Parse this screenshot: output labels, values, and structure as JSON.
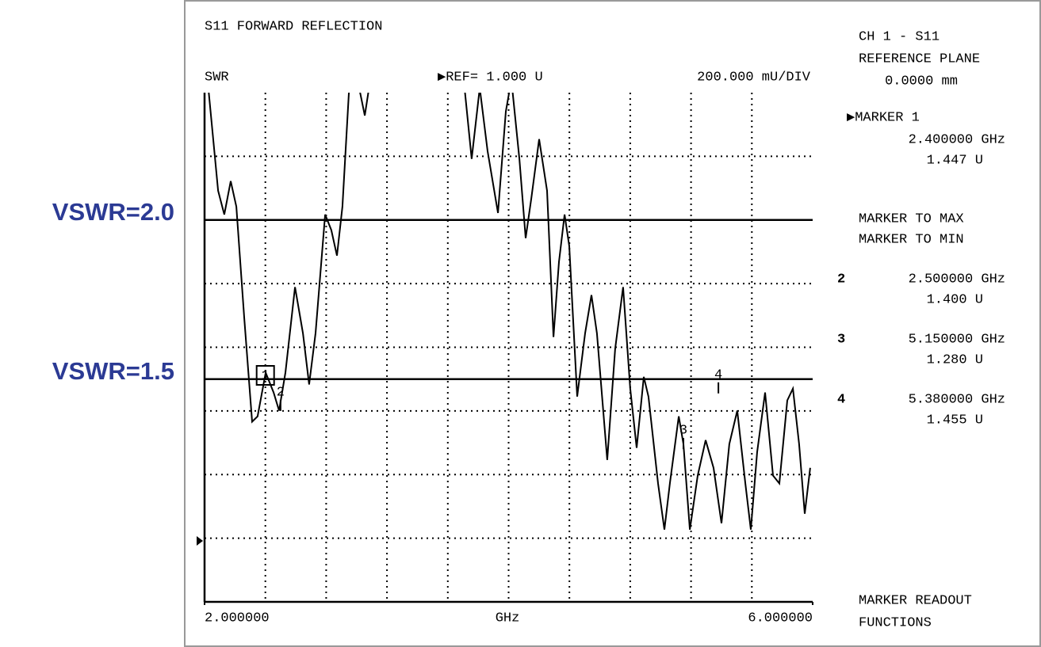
{
  "chart_data": {
    "type": "line",
    "title": "S11 FORWARD REFLECTION",
    "ylabel": "SWR",
    "ref_text": "▶REF= 1.000 U",
    "scale_text": "200.000 mU/DIV",
    "xlabel": "GHz",
    "xlim": [
      2,
      6
    ],
    "ylim": [
      0.8,
      2.4
    ],
    "xticks": [
      {
        "value": 2,
        "label": "2.000000"
      },
      {
        "value": 6,
        "label": "6.000000"
      }
    ],
    "xgrid": [
      2.4,
      2.8,
      3.2,
      3.6,
      4.0,
      4.4,
      4.8,
      5.2,
      5.6
    ],
    "ygrid": [
      1.0,
      1.2,
      1.4,
      1.6,
      1.8,
      2.2
    ],
    "reference_lines": [
      {
        "value": 2.0,
        "label": "VSWR=2.0"
      },
      {
        "value": 1.5,
        "label": "VSWR=1.5"
      }
    ],
    "color": "#000000",
    "x": [
      2.02,
      2.089,
      2.13,
      2.172,
      2.209,
      2.261,
      2.313,
      2.349,
      2.402,
      2.454,
      2.49,
      2.532,
      2.595,
      2.647,
      2.688,
      2.73,
      2.793,
      2.834,
      2.871,
      2.907,
      2.949,
      2.986,
      3.017,
      3.054,
      3.09,
      3.4,
      3.705,
      3.757,
      3.81,
      3.862,
      3.93,
      3.982,
      4.018,
      4.071,
      4.112,
      4.149,
      4.201,
      4.253,
      4.295,
      4.331,
      4.368,
      4.399,
      4.451,
      4.503,
      4.545,
      4.581,
      4.649,
      4.701,
      4.753,
      4.8,
      4.842,
      4.889,
      4.92,
      4.983,
      5.025,
      5.061,
      5.119,
      5.15,
      5.192,
      5.244,
      5.296,
      5.348,
      5.4,
      5.452,
      5.504,
      5.557,
      5.593,
      5.635,
      5.687,
      5.739,
      5.781,
      5.833,
      5.87,
      5.911,
      5.948,
      5.984
    ],
    "values": [
      2.44,
      2.092,
      2.017,
      2.122,
      2.042,
      1.694,
      1.366,
      1.383,
      1.52,
      1.458,
      1.401,
      1.52,
      1.789,
      1.644,
      1.483,
      1.644,
      2.017,
      1.968,
      1.888,
      2.042,
      2.398,
      2.465,
      2.415,
      2.328,
      2.44,
      null,
      2.44,
      2.192,
      2.415,
      2.216,
      2.022,
      2.341,
      2.44,
      2.192,
      1.943,
      2.067,
      2.254,
      2.092,
      1.632,
      1.868,
      2.017,
      1.918,
      1.445,
      1.644,
      1.764,
      1.644,
      1.246,
      1.595,
      1.789,
      1.47,
      1.284,
      1.507,
      1.445,
      1.172,
      1.027,
      1.172,
      1.383,
      1.296,
      1.027,
      1.197,
      1.308,
      1.221,
      1.047,
      1.296,
      1.401,
      1.172,
      1.027,
      1.271,
      1.458,
      1.197,
      1.172,
      1.433,
      1.47,
      1.296,
      1.077,
      1.221
    ],
    "markers": [
      {
        "label": "1",
        "x": 2.4,
        "y": 1.447
      },
      {
        "label": "2",
        "x": 2.5,
        "y": 1.4
      },
      {
        "label": "3",
        "x": 5.15,
        "y": 1.28
      },
      {
        "label": "4",
        "x": 5.38,
        "y": 1.455
      }
    ]
  },
  "panel": {
    "channel": "CH 1 - S11",
    "plane_title": "REFERENCE PLANE",
    "plane_value": "0.0000 mm",
    "marker1_title": "▶MARKER 1",
    "marker1_freq": "2.400000 GHz",
    "marker1_value": "1.447 U",
    "to_max": "MARKER TO MAX",
    "to_min": "MARKER TO MIN",
    "readouts": [
      {
        "id": "2",
        "freq": "2.500000 GHz",
        "value": "1.400 U"
      },
      {
        "id": "3",
        "freq": "5.150000 GHz",
        "value": "1.280 U"
      },
      {
        "id": "4",
        "freq": "5.380000 GHz",
        "value": "1.455 U"
      }
    ],
    "footer1": "MARKER READOUT",
    "footer2": "FUNCTIONS"
  }
}
